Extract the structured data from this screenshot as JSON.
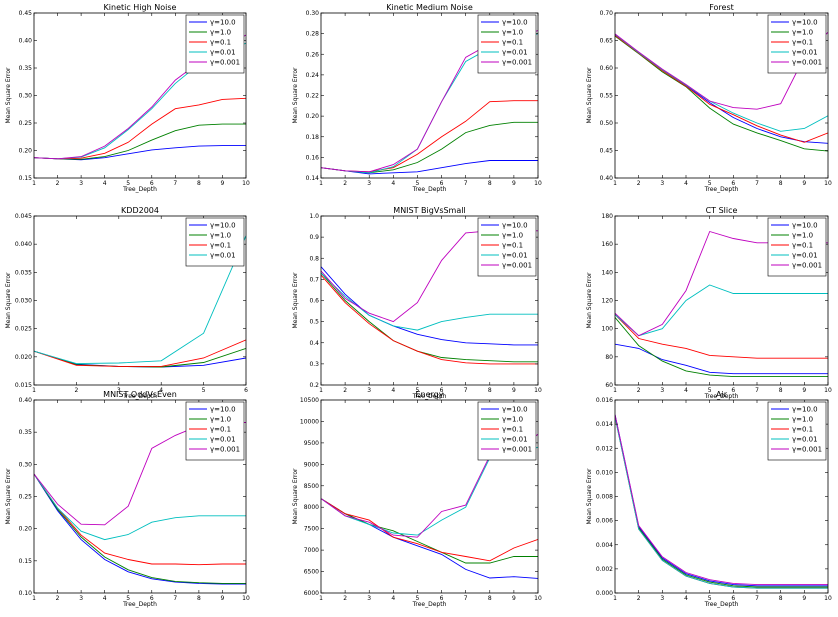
{
  "chart_data": [
    {
      "type": "line",
      "title": "Kinetic High Noise",
      "xlabel": "Tree_Depth",
      "ylabel": "Mean Square Error",
      "x": [
        1,
        2,
        3,
        4,
        5,
        6,
        7,
        8,
        9,
        10
      ],
      "xlim": [
        1,
        10
      ],
      "ylim": [
        0.15,
        0.45
      ],
      "yticks": [
        0.15,
        0.2,
        0.25,
        0.3,
        0.35,
        0.4,
        0.45
      ],
      "ytick_labels": [
        "0.15",
        "0.20",
        "0.25",
        "0.30",
        "0.35",
        "0.40",
        "0.45"
      ],
      "legend": "top-right",
      "series": [
        {
          "name": "γ=10.0",
          "color": "#0000ff",
          "values": [
            0.187,
            0.185,
            0.183,
            0.187,
            0.194,
            0.201,
            0.205,
            0.208,
            0.209,
            0.209
          ]
        },
        {
          "name": "γ=1.0",
          "color": "#008000",
          "values": [
            0.187,
            0.185,
            0.184,
            0.189,
            0.2,
            0.219,
            0.236,
            0.246,
            0.248,
            0.248
          ]
        },
        {
          "name": "γ=0.1",
          "color": "#ff0000",
          "values": [
            0.187,
            0.185,
            0.186,
            0.195,
            0.215,
            0.248,
            0.276,
            0.283,
            0.293,
            0.295
          ]
        },
        {
          "name": "γ=0.01",
          "color": "#00bfbf",
          "values": [
            0.187,
            0.185,
            0.188,
            0.205,
            0.238,
            0.276,
            0.322,
            0.357,
            0.38,
            0.395
          ]
        },
        {
          "name": "γ=0.001",
          "color": "#bf00bf",
          "values": [
            0.187,
            0.185,
            0.189,
            0.208,
            0.24,
            0.279,
            0.328,
            0.36,
            0.385,
            0.41
          ]
        }
      ]
    },
    {
      "type": "line",
      "title": "Kinetic Medium Noise",
      "xlabel": "Tree_Depth",
      "ylabel": "Mean Square Error",
      "x": [
        1,
        2,
        3,
        4,
        5,
        6,
        7,
        8,
        9,
        10
      ],
      "xlim": [
        1,
        10
      ],
      "ylim": [
        0.14,
        0.3
      ],
      "yticks": [
        0.14,
        0.16,
        0.18,
        0.2,
        0.22,
        0.24,
        0.26,
        0.28,
        0.3
      ],
      "ytick_labels": [
        "0.14",
        "0.16",
        "0.18",
        "0.20",
        "0.22",
        "0.24",
        "0.26",
        "0.28",
        "0.30"
      ],
      "legend": "top-right",
      "series": [
        {
          "name": "γ=10.0",
          "color": "#0000ff",
          "values": [
            0.15,
            0.147,
            0.144,
            0.145,
            0.146,
            0.15,
            0.154,
            0.157,
            0.157,
            0.157
          ]
        },
        {
          "name": "γ=1.0",
          "color": "#008000",
          "values": [
            0.15,
            0.147,
            0.145,
            0.148,
            0.155,
            0.168,
            0.184,
            0.191,
            0.194,
            0.194
          ]
        },
        {
          "name": "γ=0.1",
          "color": "#ff0000",
          "values": [
            0.15,
            0.147,
            0.146,
            0.15,
            0.163,
            0.18,
            0.195,
            0.214,
            0.215,
            0.215
          ]
        },
        {
          "name": "γ=0.01",
          "color": "#00bfbf",
          "values": [
            0.15,
            0.147,
            0.145,
            0.151,
            0.168,
            0.214,
            0.253,
            0.266,
            0.272,
            0.28
          ]
        },
        {
          "name": "γ=0.001",
          "color": "#bf00bf",
          "values": [
            0.15,
            0.147,
            0.146,
            0.153,
            0.168,
            0.214,
            0.257,
            0.27,
            0.275,
            0.283
          ]
        }
      ]
    },
    {
      "type": "line",
      "title": "Forest",
      "xlabel": "Tree_Depth",
      "ylabel": "Mean Square Error",
      "x": [
        1,
        2,
        3,
        4,
        5,
        6,
        7,
        8,
        9,
        10
      ],
      "xlim": [
        1,
        10
      ],
      "ylim": [
        0.4,
        0.7
      ],
      "yticks": [
        0.4,
        0.45,
        0.5,
        0.55,
        0.6,
        0.65,
        0.7
      ],
      "ytick_labels": [
        "0.40",
        "0.45",
        "0.50",
        "0.55",
        "0.60",
        "0.65",
        "0.70"
      ],
      "legend": "top-right",
      "series": [
        {
          "name": "γ=10.0",
          "color": "#0000ff",
          "values": [
            0.66,
            0.628,
            0.597,
            0.568,
            0.537,
            0.51,
            0.49,
            0.475,
            0.466,
            0.463
          ]
        },
        {
          "name": "γ=1.0",
          "color": "#008000",
          "values": [
            0.658,
            0.626,
            0.593,
            0.566,
            0.527,
            0.498,
            0.482,
            0.468,
            0.453,
            0.449
          ]
        },
        {
          "name": "γ=0.1",
          "color": "#ff0000",
          "values": [
            0.659,
            0.627,
            0.595,
            0.567,
            0.534,
            0.515,
            0.495,
            0.478,
            0.465,
            0.482
          ]
        },
        {
          "name": "γ=0.01",
          "color": "#00bfbf",
          "values": [
            0.661,
            0.628,
            0.597,
            0.569,
            0.54,
            0.518,
            0.5,
            0.485,
            0.49,
            0.513
          ]
        },
        {
          "name": "γ=0.001",
          "color": "#bf00bf",
          "values": [
            0.662,
            0.629,
            0.598,
            0.57,
            0.54,
            0.528,
            0.525,
            0.535,
            0.62,
            0.665
          ]
        }
      ]
    },
    {
      "type": "line",
      "title": "KDD2004",
      "xlabel": "Tree_Depth",
      "ylabel": "Mean Square Error",
      "x": [
        1,
        2,
        3,
        4,
        5,
        6
      ],
      "xlim": [
        1,
        6
      ],
      "ylim": [
        0.015,
        0.045
      ],
      "yticks": [
        0.015,
        0.02,
        0.025,
        0.03,
        0.035,
        0.04,
        0.045
      ],
      "ytick_labels": [
        "0.015",
        "0.020",
        "0.025",
        "0.030",
        "0.035",
        "0.040",
        "0.045"
      ],
      "legend": "top-right",
      "series": [
        {
          "name": "γ=10.0",
          "color": "#0000ff",
          "values": [
            0.021,
            0.0187,
            0.0183,
            0.0182,
            0.0185,
            0.0198
          ]
        },
        {
          "name": "γ=1.0",
          "color": "#008000",
          "values": [
            0.021,
            0.0186,
            0.0183,
            0.0182,
            0.019,
            0.0215
          ]
        },
        {
          "name": "γ=0.1",
          "color": "#ff0000",
          "values": [
            0.021,
            0.0185,
            0.0183,
            0.0183,
            0.0198,
            0.023
          ]
        },
        {
          "name": "γ=0.01",
          "color": "#00bfbf",
          "values": [
            0.021,
            0.0188,
            0.0189,
            0.0193,
            0.0242,
            0.0415
          ]
        }
      ]
    },
    {
      "type": "line",
      "title": "MNIST BigVsSmall",
      "xlabel": "Tree_Depth",
      "ylabel": "Mean Square Error",
      "x": [
        1,
        2,
        3,
        4,
        5,
        6,
        7,
        8,
        9,
        10
      ],
      "xlim": [
        1,
        10
      ],
      "ylim": [
        0.2,
        1.0
      ],
      "yticks": [
        0.2,
        0.3,
        0.4,
        0.5,
        0.6,
        0.7,
        0.8,
        0.9,
        1.0
      ],
      "ytick_labels": [
        "0.2",
        "0.3",
        "0.4",
        "0.5",
        "0.6",
        "0.7",
        "0.8",
        "0.9",
        "1.0"
      ],
      "legend": "top-right",
      "series": [
        {
          "name": "γ=10.0",
          "color": "#0000ff",
          "values": [
            0.76,
            0.63,
            0.53,
            0.48,
            0.44,
            0.415,
            0.4,
            0.395,
            0.39,
            0.39
          ]
        },
        {
          "name": "γ=1.0",
          "color": "#008000",
          "values": [
            0.73,
            0.6,
            0.5,
            0.41,
            0.36,
            0.33,
            0.32,
            0.315,
            0.31,
            0.31
          ]
        },
        {
          "name": "γ=0.1",
          "color": "#ff0000",
          "values": [
            0.72,
            0.59,
            0.49,
            0.41,
            0.36,
            0.32,
            0.305,
            0.3,
            0.3,
            0.3
          ]
        },
        {
          "name": "γ=0.01",
          "color": "#00bfbf",
          "values": [
            0.73,
            0.62,
            0.53,
            0.48,
            0.46,
            0.5,
            0.52,
            0.535,
            0.535,
            0.535
          ]
        },
        {
          "name": "γ=0.001",
          "color": "#bf00bf",
          "values": [
            0.74,
            0.61,
            0.54,
            0.5,
            0.59,
            0.79,
            0.92,
            0.93,
            0.93,
            0.93
          ]
        }
      ]
    },
    {
      "type": "line",
      "title": "CT Slice",
      "xlabel": "Tree_Depth",
      "ylabel": "Mean Square Error",
      "x": [
        1,
        2,
        3,
        4,
        5,
        6,
        7,
        8,
        9,
        10
      ],
      "xlim": [
        1,
        10
      ],
      "ylim": [
        60,
        180
      ],
      "yticks": [
        60,
        80,
        100,
        120,
        140,
        160,
        180
      ],
      "ytick_labels": [
        "60",
        "80",
        "100",
        "120",
        "140",
        "160",
        "180"
      ],
      "legend": "top-right",
      "series": [
        {
          "name": "γ=10.0",
          "color": "#0000ff",
          "values": [
            89,
            86,
            78,
            74,
            69,
            68,
            68,
            68,
            68,
            68
          ]
        },
        {
          "name": "γ=1.0",
          "color": "#008000",
          "values": [
            108,
            88,
            77,
            70,
            67,
            66,
            66,
            66,
            66,
            66
          ]
        },
        {
          "name": "γ=0.1",
          "color": "#ff0000",
          "values": [
            110,
            93,
            89,
            86,
            81,
            80,
            79,
            79,
            79,
            79
          ]
        },
        {
          "name": "γ=0.01",
          "color": "#00bfbf",
          "values": [
            110,
            95,
            100,
            120,
            131,
            125,
            125,
            125,
            125,
            125
          ]
        },
        {
          "name": "γ=0.001",
          "color": "#bf00bf",
          "values": [
            111,
            95,
            103,
            127,
            169,
            164,
            161,
            161,
            161,
            161
          ]
        }
      ]
    },
    {
      "type": "line",
      "title": "MNIST OddVsEven",
      "xlabel": "Tree_Depth",
      "ylabel": "Mean Square Error",
      "x": [
        1,
        2,
        3,
        4,
        5,
        6,
        7,
        8,
        9,
        10
      ],
      "xlim": [
        1,
        10
      ],
      "ylim": [
        0.1,
        0.4
      ],
      "yticks": [
        0.1,
        0.15,
        0.2,
        0.25,
        0.3,
        0.35,
        0.4
      ],
      "ytick_labels": [
        "0.10",
        "0.15",
        "0.20",
        "0.25",
        "0.30",
        "0.35",
        "0.40"
      ],
      "legend": "top-right",
      "series": [
        {
          "name": "γ=10.0",
          "color": "#0000ff",
          "values": [
            0.285,
            0.228,
            0.183,
            0.152,
            0.133,
            0.122,
            0.117,
            0.115,
            0.114,
            0.114
          ]
        },
        {
          "name": "γ=1.0",
          "color": "#008000",
          "values": [
            0.285,
            0.23,
            0.187,
            0.156,
            0.136,
            0.124,
            0.118,
            0.116,
            0.115,
            0.115
          ]
        },
        {
          "name": "γ=0.1",
          "color": "#ff0000",
          "values": [
            0.285,
            0.232,
            0.19,
            0.162,
            0.152,
            0.145,
            0.145,
            0.144,
            0.145,
            0.145
          ]
        },
        {
          "name": "γ=0.01",
          "color": "#00bfbf",
          "values": [
            0.285,
            0.232,
            0.196,
            0.183,
            0.191,
            0.21,
            0.217,
            0.22,
            0.22,
            0.22
          ]
        },
        {
          "name": "γ=0.001",
          "color": "#bf00bf",
          "values": [
            0.285,
            0.238,
            0.207,
            0.206,
            0.235,
            0.325,
            0.345,
            0.36,
            0.365,
            0.365
          ]
        }
      ]
    },
    {
      "type": "line",
      "title": "Energy",
      "xlabel": "Tree_Depth",
      "ylabel": "Mean Square Error",
      "x": [
        1,
        2,
        3,
        4,
        5,
        6,
        7,
        8,
        9,
        10
      ],
      "xlim": [
        1,
        10
      ],
      "ylim": [
        6000,
        10500
      ],
      "yticks": [
        6000,
        6500,
        7000,
        7500,
        8000,
        8500,
        9000,
        9500,
        10000,
        10500
      ],
      "ytick_labels": [
        "6000",
        "6500",
        "7000",
        "7500",
        "8000",
        "8500",
        "9000",
        "9500",
        "10000",
        "10500"
      ],
      "legend": "top-right",
      "series": [
        {
          "name": "γ=10.0",
          "color": "#0000ff",
          "values": [
            8200,
            7850,
            7600,
            7300,
            7100,
            6900,
            6550,
            6350,
            6380,
            6340
          ]
        },
        {
          "name": "γ=1.0",
          "color": "#008000",
          "values": [
            8200,
            7850,
            7600,
            7450,
            7200,
            6950,
            6700,
            6700,
            6850,
            6850
          ]
        },
        {
          "name": "γ=0.1",
          "color": "#ff0000",
          "values": [
            8200,
            7850,
            7700,
            7300,
            7150,
            6950,
            6850,
            6750,
            7050,
            7250
          ]
        },
        {
          "name": "γ=0.01",
          "color": "#00bfbf",
          "values": [
            8200,
            7800,
            7600,
            7400,
            7350,
            7700,
            8000,
            9150,
            9200,
            9400
          ]
        },
        {
          "name": "γ=0.001",
          "color": "#bf00bf",
          "values": [
            8200,
            7800,
            7650,
            7350,
            7300,
            7900,
            8050,
            9200,
            9300,
            9700
          ]
        }
      ]
    },
    {
      "type": "line",
      "title": "Air",
      "xlabel": "Tree_Depth",
      "ylabel": "Mean Square Error",
      "x": [
        1,
        2,
        3,
        4,
        5,
        6,
        7,
        8,
        9,
        10
      ],
      "xlim": [
        1,
        10
      ],
      "ylim": [
        0.0,
        0.016
      ],
      "yticks": [
        0.0,
        0.002,
        0.004,
        0.006,
        0.008,
        0.01,
        0.012,
        0.014,
        0.016
      ],
      "ytick_labels": [
        "0.000",
        "0.002",
        "0.004",
        "0.006",
        "0.008",
        "0.010",
        "0.012",
        "0.014",
        "0.016"
      ],
      "legend": "top-right",
      "series": [
        {
          "name": "γ=10.0",
          "color": "#0000ff",
          "values": [
            0.0148,
            0.0055,
            0.0029,
            0.0016,
            0.001,
            0.0007,
            0.0006,
            0.0006,
            0.0006,
            0.0006
          ]
        },
        {
          "name": "γ=1.0",
          "color": "#008000",
          "values": [
            0.0147,
            0.0054,
            0.0028,
            0.0015,
            0.0009,
            0.0006,
            0.0005,
            0.0005,
            0.0005,
            0.0005
          ]
        },
        {
          "name": "γ=0.1",
          "color": "#ff0000",
          "values": [
            0.0146,
            0.0053,
            0.0027,
            0.0014,
            0.0008,
            0.0005,
            0.0004,
            0.0004,
            0.0004,
            0.0004
          ]
        },
        {
          "name": "γ=0.01",
          "color": "#00bfbf",
          "values": [
            0.0146,
            0.0053,
            0.0027,
            0.0014,
            0.0008,
            0.0005,
            0.0004,
            0.0004,
            0.0004,
            0.0004
          ]
        },
        {
          "name": "γ=0.001",
          "color": "#bf00bf",
          "values": [
            0.0148,
            0.0056,
            0.003,
            0.0017,
            0.0011,
            0.0008,
            0.0007,
            0.0007,
            0.0007,
            0.0007
          ]
        }
      ]
    }
  ]
}
